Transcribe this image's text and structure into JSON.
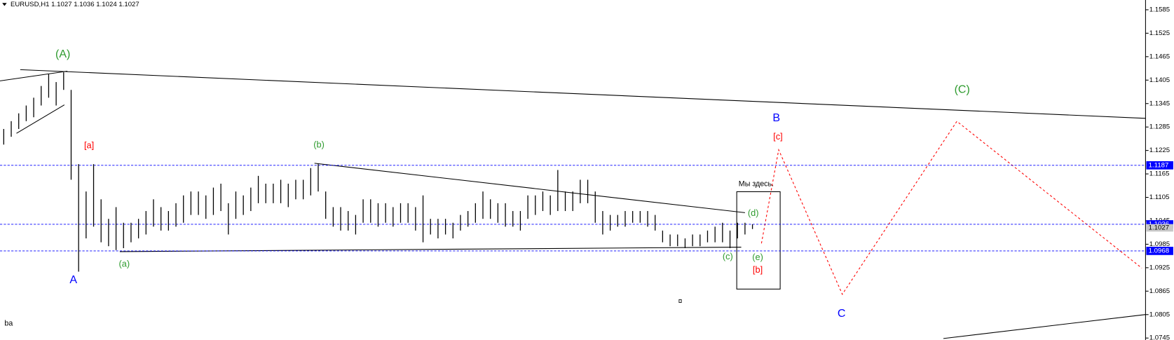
{
  "chart_data": {
    "type": "ohlc",
    "title": "EURUSD,H1  1.1027 1.1036 1.1024 1.1027",
    "footer": "ba",
    "color": "#000000",
    "ylim": [
      1.074,
      1.161
    ],
    "yticks": [
      1.1585,
      1.1525,
      1.1465,
      1.1405,
      1.1345,
      1.1285,
      1.1225,
      1.1165,
      1.1105,
      1.1045,
      1.0985,
      1.0925,
      1.0865,
      1.0805,
      1.0745
    ],
    "levels": [
      1.1187,
      1.1036,
      1.0968
    ],
    "level_color": "#0000ff",
    "price_label": 1.1027,
    "high": [
      1.128,
      1.13,
      1.132,
      1.134,
      1.136,
      1.139,
      1.142,
      1.14,
      1.1425,
      1.138,
      1.119,
      1.112,
      1.119,
      1.11,
      1.105,
      1.108,
      1.104,
      1.104,
      1.105,
      1.107,
      1.11,
      1.108,
      1.107,
      1.109,
      1.111,
      1.112,
      1.112,
      1.111,
      1.113,
      1.114,
      1.109,
      1.112,
      1.111,
      1.113,
      1.116,
      1.114,
      1.114,
      1.115,
      1.114,
      1.115,
      1.115,
      1.118,
      1.119,
      1.112,
      1.108,
      1.108,
      1.107,
      1.106,
      1.11,
      1.11,
      1.109,
      1.109,
      1.108,
      1.109,
      1.109,
      1.108,
      1.111,
      1.105,
      1.105,
      1.105,
      1.104,
      1.106,
      1.107,
      1.109,
      1.112,
      1.11,
      1.109,
      1.109,
      1.107,
      1.107,
      1.111,
      1.111,
      1.112,
      1.111,
      1.1175,
      1.112,
      1.112,
      1.115,
      1.115,
      1.112,
      1.107,
      1.106,
      1.106,
      1.107,
      1.107,
      1.107,
      1.107,
      1.106,
      1.102,
      1.101,
      1.101,
      1.1,
      1.101,
      1.101,
      1.102,
      1.103,
      1.104,
      1.102,
      1.104,
      1.104,
      1.1036
    ],
    "low": [
      1.124,
      1.126,
      1.128,
      1.13,
      1.131,
      1.134,
      1.136,
      1.134,
      1.138,
      1.115,
      1.0915,
      1.1,
      1.103,
      1.099,
      1.098,
      1.097,
      1.0975,
      1.099,
      1.1,
      1.101,
      1.103,
      1.102,
      1.102,
      1.103,
      1.104,
      1.106,
      1.106,
      1.105,
      1.106,
      1.107,
      1.101,
      1.105,
      1.106,
      1.107,
      1.109,
      1.109,
      1.109,
      1.109,
      1.108,
      1.11,
      1.11,
      1.111,
      1.112,
      1.105,
      1.103,
      1.102,
      1.102,
      1.101,
      1.104,
      1.104,
      1.103,
      1.104,
      1.103,
      1.104,
      1.104,
      1.102,
      1.099,
      1.101,
      1.1,
      1.101,
      1.1,
      1.102,
      1.103,
      1.104,
      1.105,
      1.105,
      1.104,
      1.103,
      1.103,
      1.102,
      1.105,
      1.106,
      1.107,
      1.106,
      1.107,
      1.107,
      1.107,
      1.109,
      1.109,
      1.104,
      1.101,
      1.102,
      1.103,
      1.103,
      1.104,
      1.104,
      1.103,
      1.102,
      1.099,
      1.098,
      1.098,
      1.0975,
      1.098,
      1.098,
      1.099,
      1.099,
      1.099,
      1.0975,
      1.1,
      1.101,
      1.1024
    ],
    "annotations": [
      {
        "text": "(A)",
        "color": "#2e9b2e"
      },
      {
        "text": "[a]",
        "color": "#ff0000"
      },
      {
        "text": "A",
        "color": "#0000ff"
      },
      {
        "text": "(a)",
        "color": "#2e9b2e"
      },
      {
        "text": "(b)",
        "color": "#2e9b2e"
      },
      {
        "text": "(c)",
        "color": "#2e9b2e"
      },
      {
        "text": "(d)",
        "color": "#2e9b2e"
      },
      {
        "text": "(e)",
        "color": "#2e9b2e"
      },
      {
        "text": "[b]",
        "color": "#ff0000"
      },
      {
        "text": "B",
        "color": "#0000ff"
      },
      {
        "text": "[c]",
        "color": "#ff0000"
      },
      {
        "text": "C",
        "color": "#0000ff"
      },
      {
        "text": "(C)",
        "color": "#2e9b2e"
      },
      {
        "text": "Мы здесь.",
        "color": "#000000"
      }
    ]
  }
}
